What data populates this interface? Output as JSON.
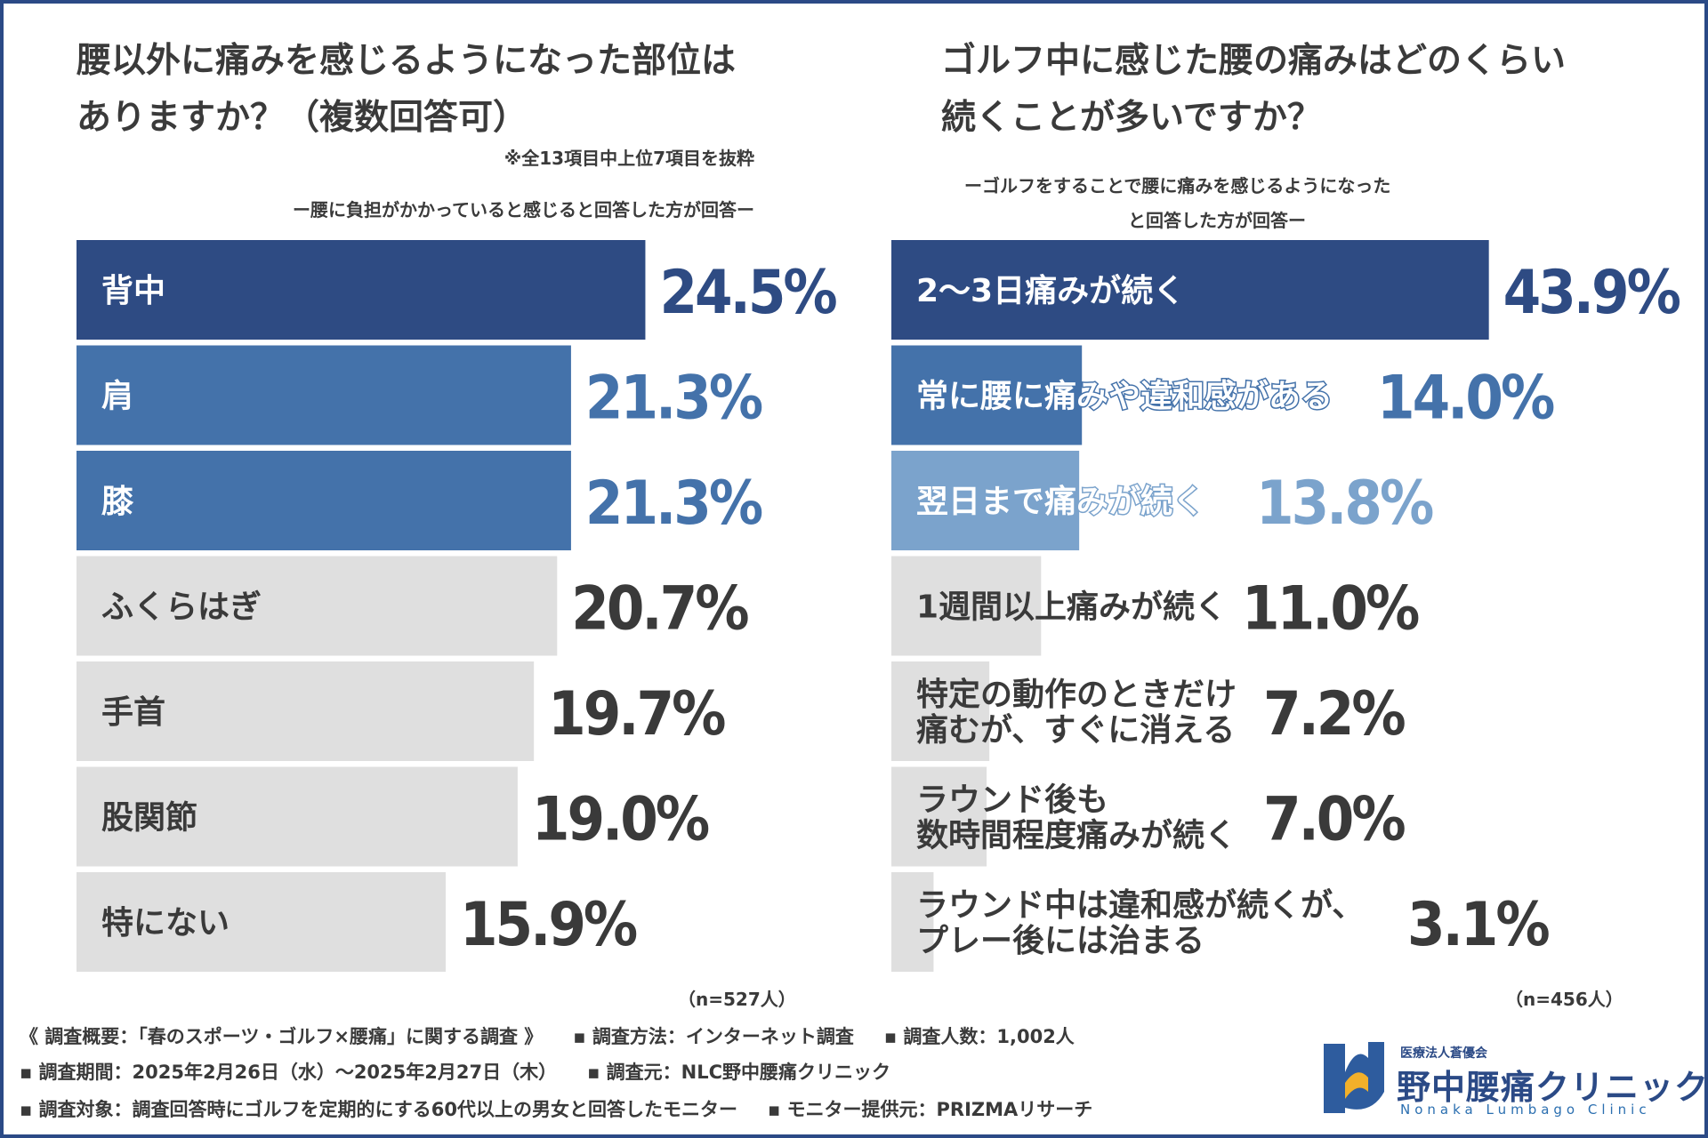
{
  "colors": {
    "dark": "#2e4b83",
    "mid": "#4472aa",
    "light": "#7ba3cc",
    "gray": "#dfdfdf",
    "text": "#3a3a3a",
    "frame": "#2b4a86"
  },
  "left": {
    "title_line1": "腰以外に痛みを感じるようになった部位は",
    "title_line2": "ありますか？（複数回答可）",
    "note": "※全13項目中上位7項目を抜粋",
    "subtitle": "ー腰に負担がかかっていると感じると回答した方が回答ー",
    "n": "（n=527人）"
  },
  "right": {
    "title_line1": "ゴルフ中に感じた腰の痛みはどのくらい",
    "title_line2": "続くことが多いですか？",
    "subtitle_line1": "ーゴルフをすることで腰に痛みを感じるようになった",
    "subtitle_line2": "と回答した方が回答ー",
    "n": "（n=456人）"
  },
  "chart_data": [
    {
      "type": "bar",
      "orientation": "horizontal",
      "title": "腰以外に痛みを感じるようになった部位はありますか？（複数回答可）",
      "categories": [
        "背中",
        "肩",
        "膝",
        "ふくらはぎ",
        "手首",
        "股関節",
        "特にない"
      ],
      "values": [
        24.5,
        21.3,
        21.3,
        20.7,
        19.7,
        19.0,
        15.9
      ],
      "value_labels": [
        "24.5%",
        "21.3%",
        "21.3%",
        "20.7%",
        "19.7%",
        "19.0%",
        "15.9%"
      ],
      "highlight": [
        "dark",
        "mid",
        "mid",
        "gray",
        "gray",
        "gray",
        "gray"
      ],
      "unit": "%"
    },
    {
      "type": "bar",
      "orientation": "horizontal",
      "title": "ゴルフ中に感じた腰の痛みはどのくらい続くことが多いですか？",
      "categories": [
        [
          "2〜3日痛みが続く"
        ],
        [
          "常に腰に痛みや違和感がある"
        ],
        [
          "翌日まで痛みが続く"
        ],
        [
          "1週間以上痛みが続く"
        ],
        [
          "特定の動作のときだけ",
          "痛むが、すぐに消える"
        ],
        [
          "ラウンド後も",
          "数時間程度痛みが続く"
        ],
        [
          "ラウンド中は違和感が続くが、",
          "プレー後には治まる"
        ]
      ],
      "values": [
        43.9,
        14.0,
        13.8,
        11.0,
        7.2,
        7.0,
        3.1
      ],
      "value_labels": [
        "43.9%",
        "14.0%",
        "13.8%",
        "11.0%",
        "7.2%",
        "7.0%",
        "3.1%"
      ],
      "highlight": [
        "dark",
        "mid",
        "light",
        "gray",
        "gray",
        "gray",
        "gray"
      ],
      "unit": "%"
    }
  ],
  "footer": {
    "line1_a": "《 調査概要：「春のスポーツ・ゴルフ×腰痛」に関する調査 》",
    "line1_b": "▪ 調査方法：インターネット調査",
    "line1_c": "▪ 調査人数：1,002人",
    "line2_a": "▪ 調査期間：2025年2月26日（水）〜2025年2月27日（木）",
    "line2_b": "▪ 調査元：NLC野中腰痛クリニック",
    "line3_a": "▪ 調査対象：調査回答時にゴルフを定期的にする60代以上の男女と回答したモニター",
    "line3_b": "▪ モニター提供元：PRIZMAリサーチ"
  },
  "logo": {
    "org": "医療法人蒼優会",
    "name": "野中腰痛クリニック",
    "en": "Nonaka Lumbago Clinic"
  }
}
